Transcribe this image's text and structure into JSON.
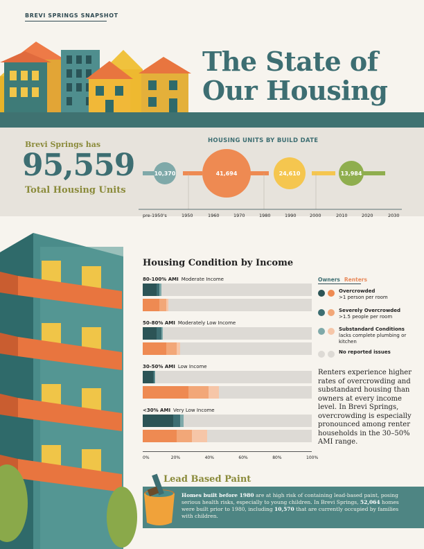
{
  "header": {
    "kicker": "BREVI SPRINGS SNAPSHOT",
    "title_line1": "The State of",
    "title_line2": "Our Housing"
  },
  "stats": {
    "pre": "Brevi Springs has",
    "total": "95,559",
    "post": "Total Housing Units"
  },
  "timeline": {
    "title": "HOUSING UNITS BY BUILD DATE",
    "axis": [
      "pre-1950's",
      "1950",
      "1960",
      "1970",
      "1980",
      "1990",
      "2000",
      "2010",
      "2020",
      "2030"
    ],
    "periods": [
      {
        "label": "10,370",
        "value": 10370,
        "color": "#7fa9a9"
      },
      {
        "label": "41,694",
        "value": 41694,
        "color": "#ee8a52"
      },
      {
        "label": "24,610",
        "value": 24610,
        "color": "#f5c64f"
      },
      {
        "label": "13,984",
        "value": 13984,
        "color": "#8fae4e"
      }
    ]
  },
  "condition": {
    "title": "Housing Condition by Income",
    "legend": {
      "owners": "Owners",
      "renters": "Renters",
      "items": [
        {
          "title": "Overcrowded",
          "sub": ">1 person per room",
          "owner_color": "#2c5456",
          "renter_color": "#ee8a52"
        },
        {
          "title": "Severely Overcrowded",
          "sub": ">1.5 people per room",
          "owner_color": "#3d6e72",
          "renter_color": "#f2a778"
        },
        {
          "title": "Substandard Conditions",
          "sub": "lacks complete plumbing or kitchen",
          "owner_color": "#7fa9a9",
          "renter_color": "#f6c6a8"
        },
        {
          "title": "No reported issues",
          "sub": "",
          "owner_color": "#dddad5",
          "renter_color": "#dddad5"
        }
      ]
    },
    "groups": [
      {
        "code": "80-100% AMI",
        "name": "Moderate Income",
        "owners": [
          8,
          2,
          1
        ],
        "renters": [
          10,
          4,
          1
        ]
      },
      {
        "code": "50-80% AMI",
        "name": "Moderately Low Income",
        "owners": [
          8,
          3,
          1
        ],
        "renters": [
          14,
          6,
          2
        ]
      },
      {
        "code": "30-50% AMI",
        "name": "Low Income",
        "owners": [
          6,
          1,
          0.5
        ],
        "renters": [
          27,
          12,
          6
        ]
      },
      {
        "code": "<30% AMI",
        "name": "Very Low Income",
        "owners": [
          18,
          4,
          2
        ],
        "renters": [
          20,
          9,
          9
        ]
      }
    ],
    "axis": [
      "0%",
      "20%",
      "40%",
      "60%",
      "80%",
      "100%"
    ],
    "paragraph": "Renters experience higher rates of overcrowding and substandard housing than owners at every income level. In Brevi Springs, overcrowding is especially pronounced among renter households in the 30–50% AMI range."
  },
  "chart_data": {
    "type": "bar",
    "title": "Housing Condition by Income",
    "categories": [
      "80-100% AMI Moderate Income",
      "50-80% AMI Moderately Low Income",
      "30-50% AMI Low Income",
      "<30% AMI Very Low Income"
    ],
    "series": [
      {
        "name": "Owners Overcrowded",
        "values": [
          8,
          8,
          6,
          18
        ]
      },
      {
        "name": "Owners Severely Overcrowded",
        "values": [
          2,
          3,
          1,
          4
        ]
      },
      {
        "name": "Owners Substandard Conditions",
        "values": [
          1,
          1,
          0.5,
          2
        ]
      },
      {
        "name": "Renters Overcrowded",
        "values": [
          10,
          14,
          27,
          20
        ]
      },
      {
        "name": "Renters Severely Overcrowded",
        "values": [
          4,
          6,
          12,
          9
        ]
      },
      {
        "name": "Renters Substandard Conditions",
        "values": [
          1,
          2,
          6,
          9
        ]
      }
    ],
    "xlim": [
      0,
      100
    ],
    "stacked": true,
    "orientation": "horizontal"
  },
  "lead": {
    "title": "Lead Based Paint",
    "text_a": "Homes built before 1980",
    "text_b": " are at high risk of containing lead-based paint, posing serious health risks, especially to young children. In Brevi Springs, ",
    "text_c": "52,064",
    "text_d": " homes were built prior to 1980, including ",
    "text_e": "10,570",
    "text_f": " that are currently occupied by families with children."
  }
}
